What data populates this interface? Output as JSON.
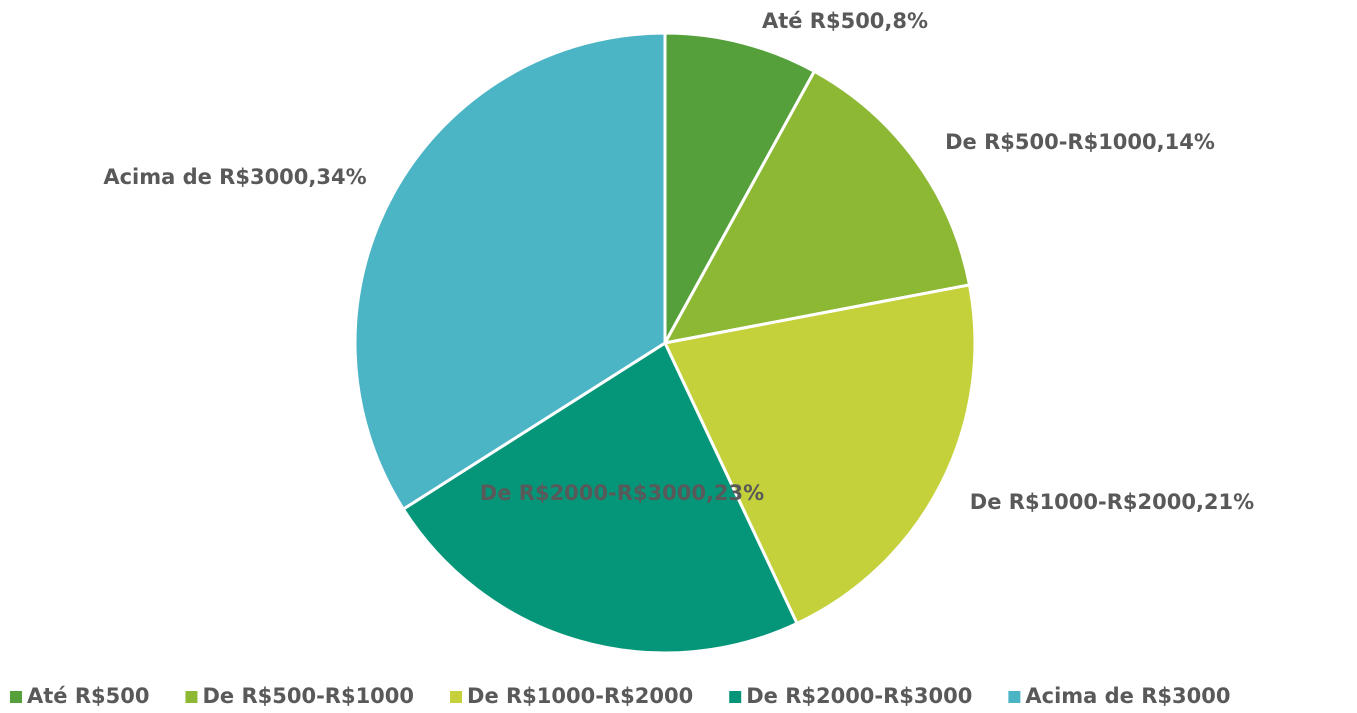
{
  "chart_data": {
    "type": "pie",
    "categories": [
      "Até R$500",
      "De R$500-R$1000",
      "De R$1000-R$2000",
      "De R$2000-R$3000",
      "Acima de R$3000"
    ],
    "values": [
      8,
      14,
      21,
      23,
      34
    ],
    "value_labels": [
      "Até R$500,8%",
      "De R$500-R$1000,14%",
      "De R$1000-R$2000,21%",
      "De R$2000-R$3000,23%",
      "Acima de R$3000,34%"
    ],
    "colors": [
      "#56a03b",
      "#8cb833",
      "#c4d13b",
      "#05967a",
      "#4bb4c5"
    ],
    "legend": "bottom"
  }
}
